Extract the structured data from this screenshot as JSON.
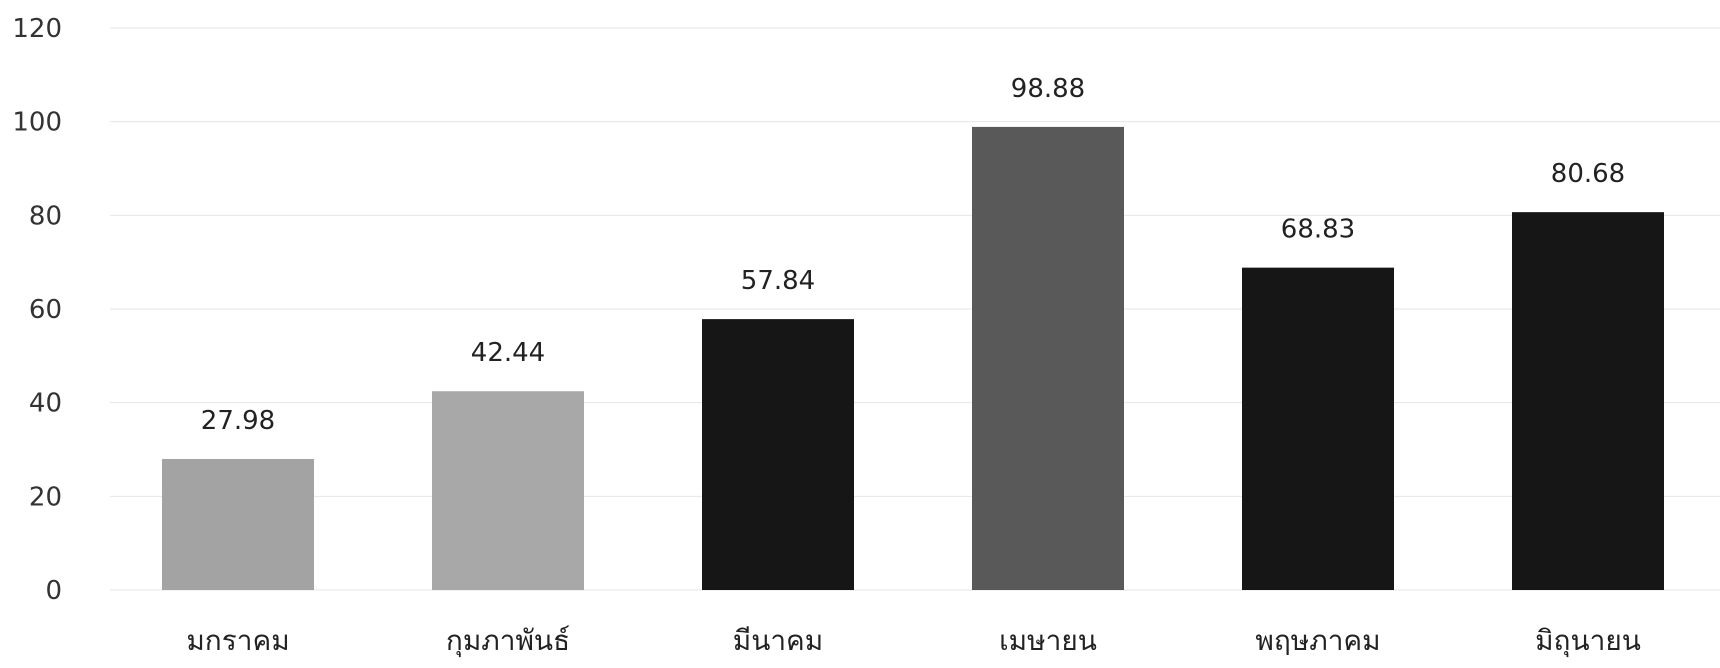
{
  "chart_data": {
    "type": "bar",
    "title": "",
    "xlabel": "",
    "ylabel": "",
    "categories": [
      "มกราคม",
      "กุมภาพันธ์",
      "มีนาคม",
      "เมษายน",
      "พฤษภาคม",
      "มิถุนายน"
    ],
    "values": [
      27.98,
      42.44,
      57.84,
      98.88,
      68.83,
      80.68
    ],
    "data_labels": [
      "27.98",
      "42.44",
      "57.84",
      "98.88",
      "68.83",
      "80.68"
    ],
    "bar_colors": [
      "#a3a3a3",
      "#a8a8a8",
      "#161616",
      "#595959",
      "#161616",
      "#161616"
    ],
    "ylim": [
      0,
      120
    ],
    "yticks": [
      "0",
      "20",
      "40",
      "60",
      "80",
      "100",
      "120"
    ],
    "grid": true,
    "legend": "none"
  }
}
